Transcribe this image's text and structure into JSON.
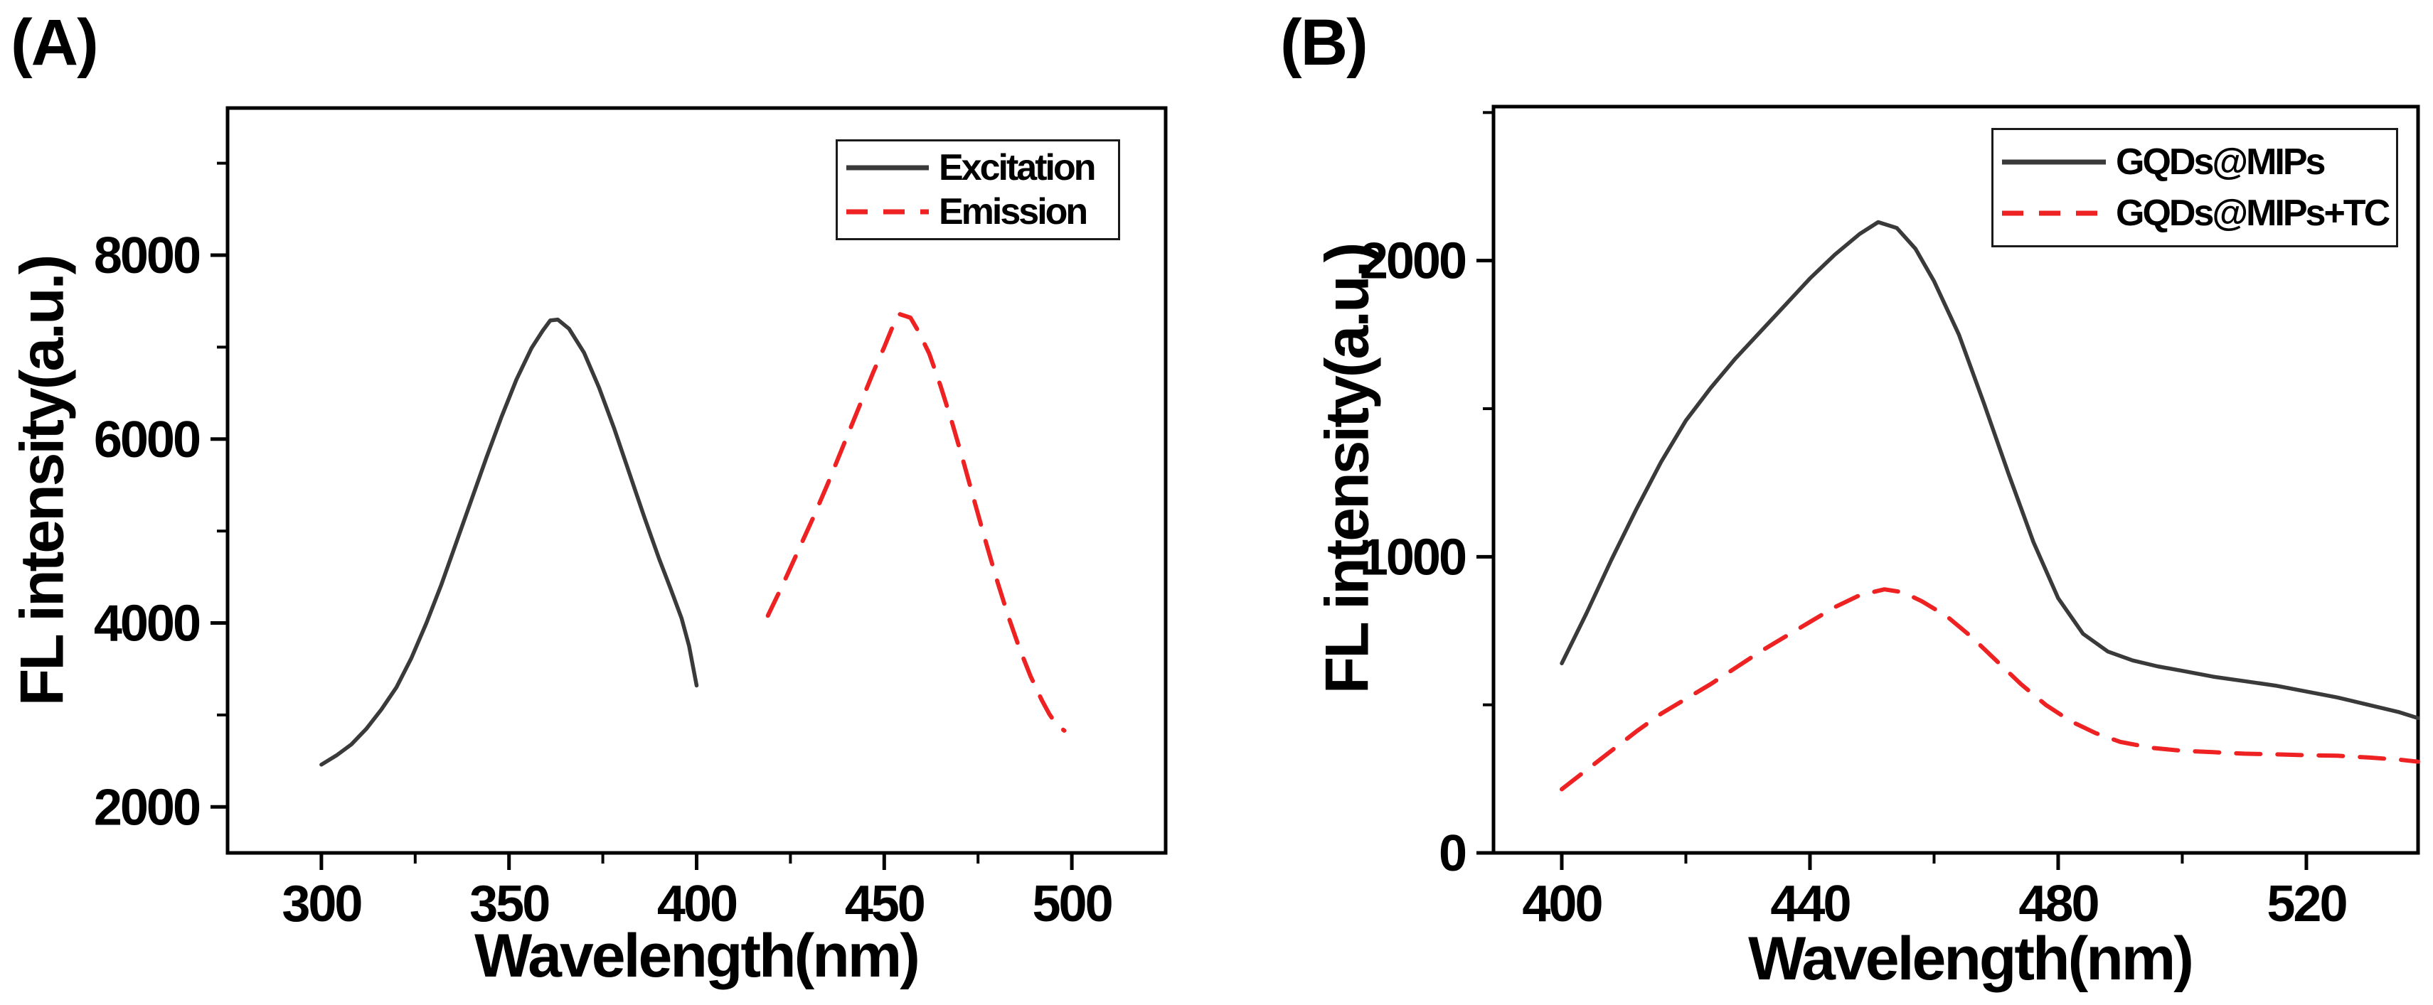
{
  "page": {
    "background": "#ffffff"
  },
  "chart_data": [
    {
      "type": "line",
      "panel_label": "(A)",
      "xlabel": "Wavelength(nm)",
      "ylabel": "FL intensity(a.u.)",
      "xlim": [
        275,
        525
      ],
      "ylim": [
        1500,
        9600
      ],
      "grid": false,
      "legend_position": "top-right",
      "axis_color": "#000000",
      "xticks": {
        "major": [
          300,
          350,
          400,
          450,
          500
        ],
        "minor": [
          325,
          375,
          425,
          475
        ]
      },
      "yticks": {
        "major": [
          2000,
          4000,
          6000,
          8000
        ],
        "minor": [
          3000,
          5000,
          7000,
          9000
        ]
      },
      "series": [
        {
          "name": "Excitation",
          "color": "#3a3a3a",
          "style": "solid",
          "width": 5.5,
          "points": [
            [
              300,
              2460
            ],
            [
              304,
              2560
            ],
            [
              308,
              2680
            ],
            [
              312,
              2850
            ],
            [
              316,
              3060
            ],
            [
              320,
              3300
            ],
            [
              324,
              3620
            ],
            [
              328,
              4000
            ],
            [
              332,
              4420
            ],
            [
              336,
              4880
            ],
            [
              340,
              5340
            ],
            [
              344,
              5800
            ],
            [
              348,
              6240
            ],
            [
              352,
              6650
            ],
            [
              356,
              6990
            ],
            [
              359,
              7180
            ],
            [
              361,
              7290
            ],
            [
              363,
              7300
            ],
            [
              366,
              7200
            ],
            [
              370,
              6940
            ],
            [
              374,
              6560
            ],
            [
              378,
              6120
            ],
            [
              382,
              5640
            ],
            [
              386,
              5160
            ],
            [
              390,
              4700
            ],
            [
              393,
              4380
            ],
            [
              396,
              4050
            ],
            [
              398,
              3750
            ],
            [
              400,
              3320
            ]
          ]
        },
        {
          "name": "Emission",
          "color": "#ee2222",
          "style": "dashed",
          "width": 6,
          "points": [
            [
              419,
              4080
            ],
            [
              423,
              4420
            ],
            [
              427,
              4780
            ],
            [
              431,
              5140
            ],
            [
              435,
              5520
            ],
            [
              439,
              5920
            ],
            [
              443,
              6320
            ],
            [
              447,
              6720
            ],
            [
              450,
              7000
            ],
            [
              452,
              7200
            ],
            [
              454,
              7360
            ],
            [
              457,
              7320
            ],
            [
              459,
              7180
            ],
            [
              462,
              6930
            ],
            [
              465,
              6580
            ],
            [
              468,
              6190
            ],
            [
              471,
              5770
            ],
            [
              474,
              5330
            ],
            [
              477,
              4890
            ],
            [
              480,
              4470
            ],
            [
              483,
              4080
            ],
            [
              486,
              3730
            ],
            [
              489,
              3420
            ],
            [
              492,
              3160
            ],
            [
              494,
              3010
            ],
            [
              496,
              2890
            ],
            [
              498,
              2830
            ]
          ]
        }
      ]
    },
    {
      "type": "line",
      "panel_label": "(B)",
      "xlabel": "Wavelength(nm)",
      "ylabel": "FL intensity(a.u.)",
      "xlim": [
        389,
        538
      ],
      "ylim": [
        0,
        2520
      ],
      "grid": false,
      "legend_position": "top-right",
      "axis_color": "#000000",
      "xticks": {
        "major": [
          400,
          440,
          480,
          520
        ],
        "minor": [
          420,
          460,
          500
        ]
      },
      "yticks": {
        "major": [
          0,
          1000,
          2000
        ],
        "minor": [
          500,
          1500,
          2500
        ]
      },
      "series": [
        {
          "name": "GQDs@MIPs",
          "color": "#3a3a3a",
          "style": "solid",
          "width": 5.5,
          "points": [
            [
              400,
              640
            ],
            [
              404,
              810
            ],
            [
              408,
              990
            ],
            [
              412,
              1160
            ],
            [
              416,
              1320
            ],
            [
              420,
              1460
            ],
            [
              424,
              1570
            ],
            [
              428,
              1670
            ],
            [
              432,
              1760
            ],
            [
              436,
              1850
            ],
            [
              440,
              1940
            ],
            [
              444,
              2020
            ],
            [
              448,
              2090
            ],
            [
              451,
              2130
            ],
            [
              454,
              2110
            ],
            [
              457,
              2040
            ],
            [
              460,
              1930
            ],
            [
              464,
              1750
            ],
            [
              468,
              1520
            ],
            [
              472,
              1280
            ],
            [
              476,
              1050
            ],
            [
              480,
              860
            ],
            [
              484,
              740
            ],
            [
              488,
              680
            ],
            [
              492,
              650
            ],
            [
              496,
              630
            ],
            [
              500,
              615
            ],
            [
              505,
              595
            ],
            [
              510,
              580
            ],
            [
              515,
              565
            ],
            [
              520,
              545
            ],
            [
              525,
              525
            ],
            [
              530,
              500
            ],
            [
              535,
              475
            ],
            [
              538,
              455
            ]
          ]
        },
        {
          "name": "GQDs@MIPs+TC",
          "color": "#ee2222",
          "style": "dashed",
          "width": 6,
          "points": [
            [
              400,
              215
            ],
            [
              404,
              280
            ],
            [
              408,
              345
            ],
            [
              412,
              410
            ],
            [
              416,
              470
            ],
            [
              420,
              520
            ],
            [
              424,
              570
            ],
            [
              428,
              625
            ],
            [
              432,
              680
            ],
            [
              436,
              730
            ],
            [
              440,
              780
            ],
            [
              444,
              830
            ],
            [
              448,
              870
            ],
            [
              452,
              890
            ],
            [
              455,
              880
            ],
            [
              458,
              850
            ],
            [
              462,
              800
            ],
            [
              466,
              730
            ],
            [
              470,
              650
            ],
            [
              474,
              570
            ],
            [
              478,
              500
            ],
            [
              482,
              445
            ],
            [
              486,
              405
            ],
            [
              490,
              375
            ],
            [
              495,
              355
            ],
            [
              500,
              345
            ],
            [
              505,
              340
            ],
            [
              510,
              335
            ],
            [
              515,
              333
            ],
            [
              520,
              330
            ],
            [
              525,
              328
            ],
            [
              530,
              322
            ],
            [
              535,
              315
            ],
            [
              538,
              308
            ]
          ]
        }
      ]
    }
  ]
}
